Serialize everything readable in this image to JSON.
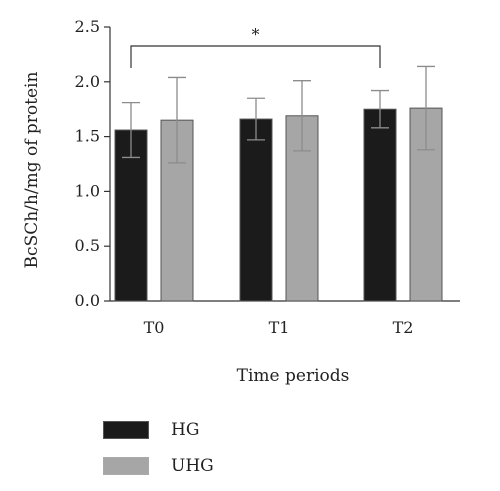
{
  "chart_data": {
    "type": "bar",
    "categories": [
      "T0",
      "T1",
      "T2"
    ],
    "series": [
      {
        "name": "HG",
        "values": [
          1.56,
          1.66,
          1.75
        ],
        "errors": [
          0.25,
          0.19,
          0.17
        ],
        "color": "#1b1b1b"
      },
      {
        "name": "UHG",
        "values": [
          1.65,
          1.69,
          1.76
        ],
        "errors": [
          0.39,
          0.32,
          0.38
        ],
        "color": "#a6a6a6"
      }
    ],
    "ylim": [
      0,
      2.5
    ],
    "yticks": [
      "0.0",
      "0.5",
      "1.0",
      "1.5",
      "2.0",
      "2.5"
    ],
    "xlabel": "Time periods",
    "ylabel": "BcSCh/h/mg of protein",
    "significance": {
      "from": "T0",
      "to": "T2",
      "label": "*"
    },
    "grid": false,
    "legend_position": "bottom-left"
  }
}
